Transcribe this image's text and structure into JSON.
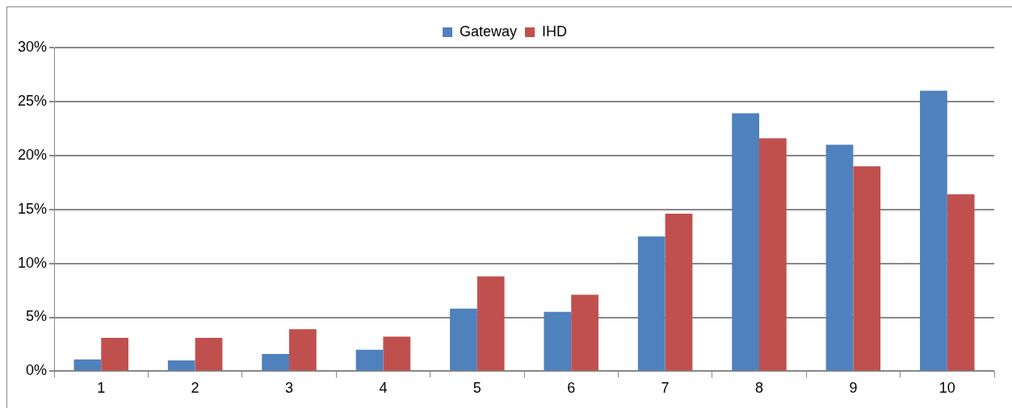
{
  "chart_data": {
    "type": "bar",
    "categories": [
      "1",
      "2",
      "3",
      "4",
      "5",
      "6",
      "7",
      "8",
      "9",
      "10"
    ],
    "series": [
      {
        "name": "Gateway",
        "color": "#4f81bd",
        "values": [
          1.1,
          1.0,
          1.6,
          2.0,
          5.8,
          5.5,
          12.5,
          23.9,
          21.0,
          26.0
        ]
      },
      {
        "name": "IHD",
        "color": "#c0504d",
        "values": [
          3.1,
          3.1,
          3.9,
          3.2,
          8.8,
          7.1,
          14.6,
          21.6,
          19.0,
          16.4
        ]
      }
    ],
    "ylim": [
      0,
      30
    ],
    "yticks": [
      {
        "value": 0,
        "label": "0%"
      },
      {
        "value": 5,
        "label": "5%"
      },
      {
        "value": 10,
        "label": "10%"
      },
      {
        "value": 15,
        "label": "15%"
      },
      {
        "value": 20,
        "label": "20%"
      },
      {
        "value": 25,
        "label": "25%"
      },
      {
        "value": 30,
        "label": "30%"
      }
    ],
    "grid": "y",
    "legend": "top"
  }
}
